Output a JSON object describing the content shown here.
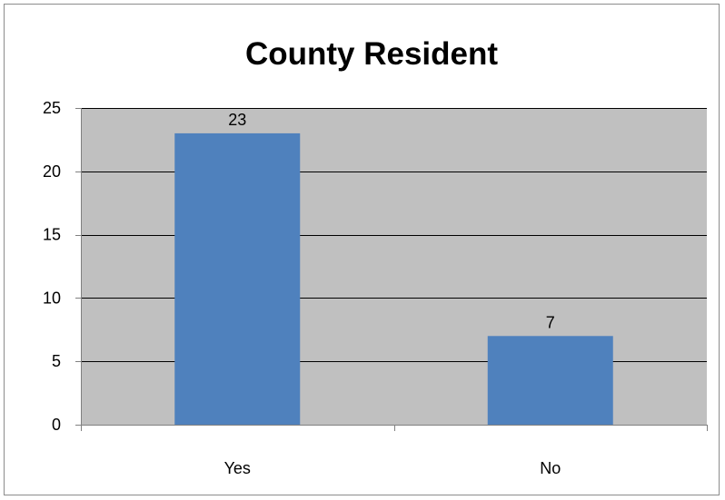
{
  "chart_data": {
    "type": "bar",
    "title": "County Resident",
    "categories": [
      "Yes",
      "No"
    ],
    "values": [
      23,
      7
    ],
    "data_labels": [
      "23",
      "7"
    ],
    "xlabel": "",
    "ylabel": "",
    "ylim": [
      0,
      25
    ],
    "yticks": [
      0,
      5,
      10,
      15,
      20,
      25
    ],
    "ytick_labels": [
      "0",
      "5",
      "10",
      "15",
      "20",
      "25"
    ],
    "grid": true,
    "legend": "none",
    "colors": {
      "bar": "#4f81bd",
      "plot_background": "#c0c0c0",
      "gridline": "#000000",
      "axis": "#808080",
      "frame": "#8c8c8c"
    }
  }
}
